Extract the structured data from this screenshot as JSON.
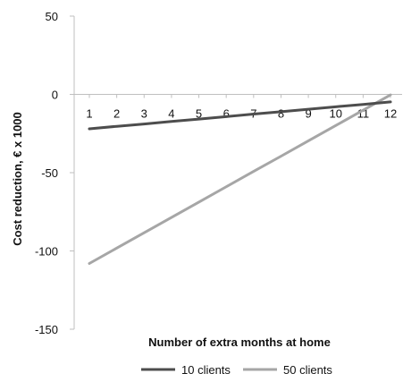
{
  "chart_data": {
    "type": "line",
    "title": "",
    "xlabel": "Number  of extra months at home",
    "ylabel": "Cost reduction, € x 1000",
    "x": [
      1,
      2,
      3,
      4,
      5,
      6,
      7,
      8,
      9,
      10,
      11,
      12
    ],
    "xlim": [
      1,
      12
    ],
    "ylim": [
      -150,
      50
    ],
    "yticks": [
      50,
      0,
      -50,
      -100,
      -150
    ],
    "grid": false,
    "legend_position": "bottom",
    "series": [
      {
        "name": "10 clients",
        "color": "#4d4d4d",
        "values": [
          -22,
          -20.4,
          -18.9,
          -17.3,
          -15.8,
          -14.2,
          -12.6,
          -11.1,
          -9.5,
          -7.9,
          -6.4,
          -4.8
        ]
      },
      {
        "name": "50 clients",
        "color": "#a6a6a6",
        "values": [
          -108,
          -98.2,
          -88.4,
          -78.6,
          -68.8,
          -59.0,
          -49.2,
          -39.5,
          -29.7,
          -19.9,
          -10.1,
          -0.3
        ]
      }
    ]
  }
}
